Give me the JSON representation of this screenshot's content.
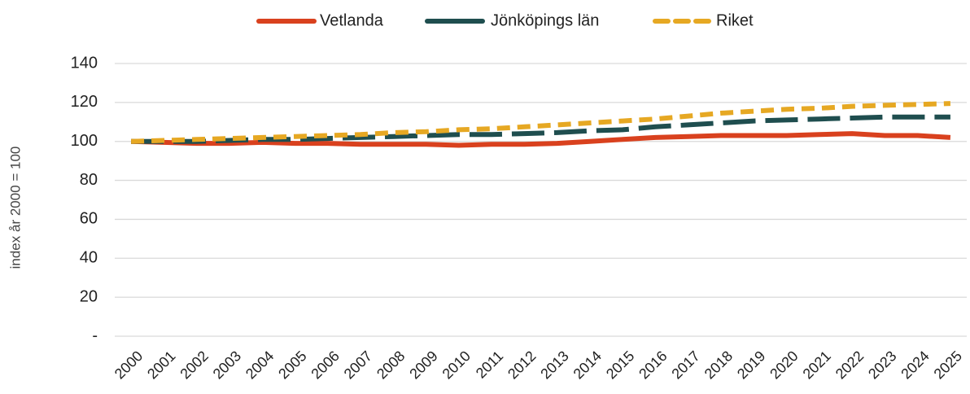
{
  "chart_data": {
    "type": "line",
    "y_label": "index år 2000 = 100",
    "x": [
      "2000",
      "2001",
      "2002",
      "2003",
      "2004",
      "2005",
      "2006",
      "2007",
      "2008",
      "2009",
      "2010",
      "2011",
      "2012",
      "2013",
      "2014",
      "2015",
      "2016",
      "2017",
      "2018",
      "2019",
      "2020",
      "2021",
      "2022",
      "2023",
      "2024",
      "2025"
    ],
    "series": [
      {
        "name": "Vetlanda",
        "color": "#d9411e",
        "style": "solid",
        "values": [
          100,
          99.5,
          99,
          99,
          99.5,
          99,
          99,
          98.5,
          98.5,
          98.5,
          98,
          98.5,
          98.5,
          99,
          100,
          101,
          102,
          102.5,
          103,
          103,
          103,
          103.5,
          104,
          103,
          103,
          102
        ]
      },
      {
        "name": "Jönköpings län",
        "color": "#1f4e4f",
        "style": "long-dash",
        "values": [
          100,
          100,
          100,
          100.5,
          101,
          101,
          101.5,
          102,
          102.5,
          103,
          103.5,
          103.5,
          104,
          104.5,
          105.5,
          106,
          107.5,
          108.5,
          109.5,
          110.5,
          111,
          111.5,
          112,
          112.5,
          112.5,
          112.5
        ]
      },
      {
        "name": "Riket",
        "color": "#e6a823",
        "style": "short-dash",
        "values": [
          100,
          100.5,
          101,
          101.5,
          102,
          102.5,
          103,
          103.5,
          104.5,
          105,
          106,
          106.5,
          107.5,
          108.5,
          109.5,
          110.5,
          111.5,
          113,
          114.5,
          115.5,
          116.5,
          117,
          118,
          118.5,
          119,
          119.5
        ]
      }
    ],
    "ylim": [
      0,
      140
    ],
    "yticks": [
      {
        "value": 0,
        "label": "-"
      },
      20,
      40,
      60,
      80,
      100,
      120,
      140
    ],
    "grid": true,
    "legend": "top"
  }
}
